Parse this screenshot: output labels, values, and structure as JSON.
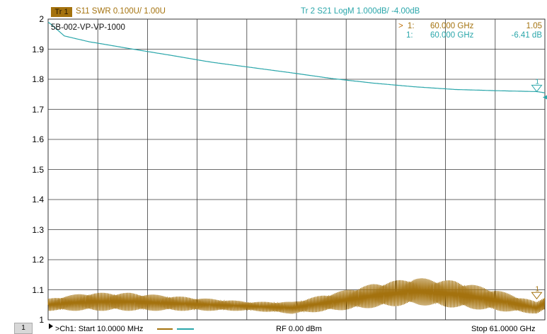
{
  "colors": {
    "trace1": "#a4720e",
    "trace2": "#2aa6aa",
    "grid": "#3a3a3a",
    "marker_arrow": "#c0710a"
  },
  "header": {
    "tr1_badge": "Tr 1",
    "tr1_text": "S11 SWR 0.100U/  1.00U",
    "tr2_text": "Tr  2   S21 LogM 1.000dB/  -4.00dB"
  },
  "channel_label": "5B-002-VP-VP-1000",
  "markers": [
    {
      "arrow": ">",
      "id": "1:",
      "freq": "60.000  GHz",
      "value": "1.05"
    },
    {
      "arrow": "",
      "id": "1:",
      "freq": "60.000  GHz",
      "value": "-6.41 dB"
    }
  ],
  "marker_flag_label": "1",
  "footer": {
    "channel_number": "1",
    "start": ">Ch1:  Start   10.0000 MHz",
    "rf": "RF   0.00 dBm",
    "stop": "Stop  61.0000 GHz"
  },
  "chart_data": {
    "type": "line",
    "x_range_ghz": [
      0.01,
      61.0
    ],
    "y_ticks": [
      "2",
      "1.9",
      "1.8",
      "1.7",
      "1.6",
      "1.5",
      "1.4",
      "1.3",
      "1.2",
      "1.1",
      "1"
    ],
    "ylim": [
      1.0,
      2.0
    ],
    "grid": true,
    "series": [
      {
        "name": "S11 SWR",
        "scale": "0.100U/div, ref 1.00U",
        "x": [
          0.01,
          2,
          5,
          10,
          15,
          20,
          25,
          30,
          35,
          40,
          45,
          50,
          55,
          60,
          61
        ],
        "y_envelope_low": [
          1.03,
          1.03,
          1.03,
          1.03,
          1.03,
          1.03,
          1.03,
          1.02,
          1.03,
          1.04,
          1.05,
          1.04,
          1.03,
          1.02,
          1.03
        ],
        "y_envelope_high": [
          1.07,
          1.08,
          1.09,
          1.09,
          1.08,
          1.07,
          1.06,
          1.06,
          1.09,
          1.12,
          1.14,
          1.13,
          1.1,
          1.06,
          1.08
        ],
        "marker_1": {
          "x": 60.0,
          "y": 1.05
        }
      },
      {
        "name": "S21 LogM",
        "scale": "1.000dB/div, ref -4.00dB",
        "x": [
          0.01,
          0.5,
          2,
          5,
          10,
          15,
          20,
          25,
          30,
          35,
          40,
          45,
          50,
          55,
          60,
          61
        ],
        "y": [
          -4.1,
          -4.2,
          -4.56,
          -4.75,
          -4.98,
          -5.2,
          -5.43,
          -5.61,
          -5.79,
          -5.98,
          -6.13,
          -6.25,
          -6.34,
          -6.38,
          -6.41,
          -6.45
        ],
        "marker_1": {
          "x": 60.0,
          "y": -6.41
        }
      }
    ]
  }
}
